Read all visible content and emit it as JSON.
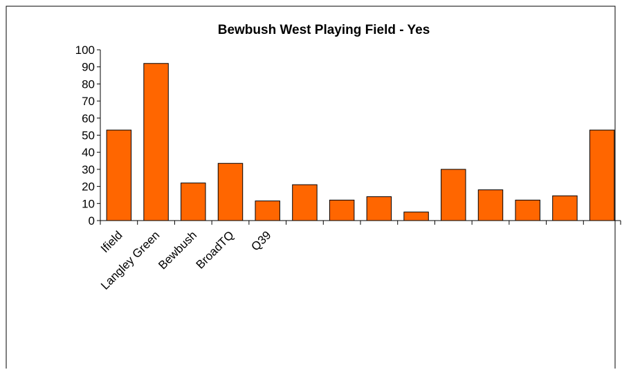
{
  "chart_data": {
    "type": "bar",
    "title": "Bewbush West Playing Field - Yes",
    "categories": [
      "Ifield",
      "Langley Green",
      "Bewbush",
      "BroadTQ",
      "Q39",
      "",
      "",
      "",
      "",
      "",
      "",
      "",
      "",
      ""
    ],
    "values": [
      53,
      92,
      22,
      33.5,
      11.5,
      21,
      12,
      14,
      5,
      30,
      18,
      12,
      14.5,
      53
    ],
    "ylim": [
      0,
      100
    ],
    "yticks": [
      0,
      10,
      20,
      30,
      40,
      50,
      60,
      70,
      80,
      90,
      100
    ],
    "xlabel": "",
    "ylabel": "",
    "grid": false,
    "legend": "none",
    "bar_color": "#FF6600",
    "bar_edge_color": "#000000"
  }
}
